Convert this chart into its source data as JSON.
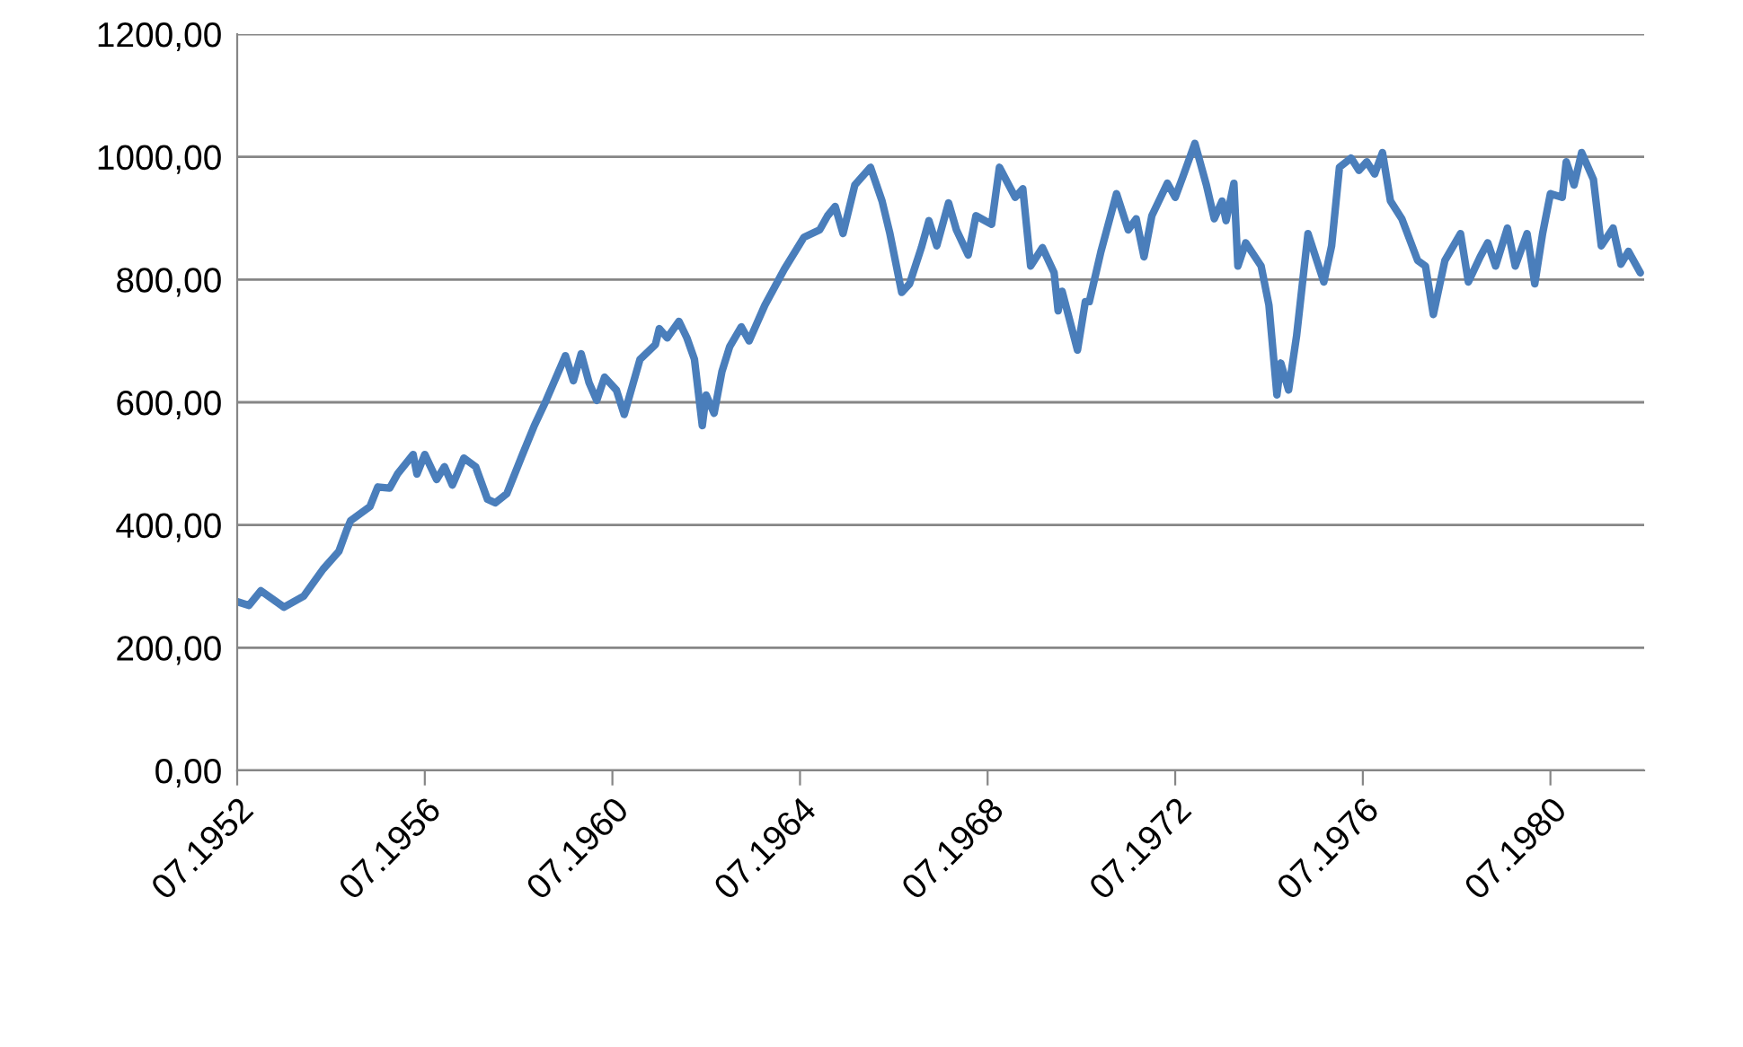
{
  "chart_data": {
    "type": "line",
    "color": "#4a7ebb",
    "x": [
      "1952-07",
      "1952-10",
      "1953-01",
      "1953-07",
      "1953-12",
      "1954-05",
      "1954-09",
      "1954-11",
      "1954-12",
      "1955-05",
      "1955-07",
      "1955-10",
      "1955-12",
      "1956-04",
      "1956-05",
      "1956-07",
      "1956-10",
      "1956-12",
      "1957-02",
      "1957-05",
      "1957-08",
      "1957-11",
      "1958-01",
      "1958-04",
      "1958-08",
      "1958-11",
      "1959-02",
      "1959-07",
      "1959-09",
      "1959-11",
      "1960-01",
      "1960-03",
      "1960-05",
      "1960-08",
      "1960-10",
      "1961-02",
      "1961-06",
      "1961-07",
      "1961-09",
      "1961-12",
      "1962-02",
      "1962-04",
      "1962-06",
      "1962-07",
      "1962-09",
      "1962-11",
      "1963-01",
      "1963-04",
      "1963-06",
      "1963-10",
      "1964-03",
      "1964-08",
      "1964-12",
      "1965-02",
      "1965-04",
      "1965-06",
      "1965-09",
      "1966-01",
      "1966-04",
      "1966-06",
      "1966-09",
      "1966-11",
      "1967-02",
      "1967-04",
      "1967-06",
      "1967-09",
      "1967-11",
      "1968-02",
      "1968-04",
      "1968-08",
      "1968-10",
      "1969-02",
      "1969-04",
      "1969-06",
      "1969-09",
      "1969-12",
      "1970-01",
      "1970-02",
      "1970-06",
      "1970-08",
      "1970-09",
      "1970-12",
      "1971-04",
      "1971-07",
      "1971-09",
      "1971-11",
      "1972-01",
      "1972-05",
      "1972-07",
      "1972-09",
      "1972-12",
      "1973-03",
      "1973-05",
      "1973-07",
      "1973-08",
      "1973-10",
      "1973-11",
      "1974-01",
      "1974-05",
      "1974-07",
      "1974-09",
      "1974-10",
      "1974-12",
      "1975-02",
      "1975-05",
      "1975-09",
      "1975-11",
      "1976-01",
      "1976-04",
      "1976-06",
      "1976-08",
      "1976-10",
      "1976-12",
      "1977-02",
      "1977-05",
      "1977-09",
      "1977-11",
      "1978-01",
      "1978-04",
      "1978-08",
      "1978-10",
      "1979-01",
      "1979-03",
      "1979-05",
      "1979-08",
      "1979-10",
      "1980-01",
      "1980-03",
      "1980-05",
      "1980-07",
      "1980-10",
      "1980-11",
      "1981-01",
      "1981-03",
      "1981-06",
      "1981-08",
      "1981-11",
      "1982-01",
      "1982-03",
      "1982-06"
    ],
    "values": [
      275,
      269,
      293,
      266,
      284,
      328,
      357,
      392,
      407,
      430,
      462,
      460,
      483,
      515,
      483,
      515,
      474,
      495,
      465,
      509,
      495,
      442,
      436,
      451,
      515,
      562,
      603,
      676,
      635,
      679,
      632,
      603,
      641,
      620,
      580,
      670,
      694,
      720,
      705,
      732,
      705,
      670,
      562,
      612,
      582,
      650,
      691,
      723,
      700,
      758,
      817,
      869,
      881,
      904,
      919,
      875,
      954,
      983,
      928,
      875,
      779,
      793,
      852,
      896,
      855,
      925,
      881,
      840,
      904,
      890,
      983,
      934,
      948,
      822,
      852,
      811,
      749,
      781,
      685,
      764,
      764,
      846,
      940,
      881,
      899,
      837,
      904,
      957,
      934,
      969,
      1022,
      954,
      899,
      928,
      896,
      957,
      822,
      860,
      822,
      758,
      612,
      664,
      620,
      708,
      875,
      796,
      855,
      983,
      998,
      978,
      992,
      972,
      1007,
      928,
      899,
      831,
      822,
      743,
      831,
      875,
      796,
      837,
      860,
      822,
      884,
      822,
      875,
      793,
      875,
      940,
      934,
      992,
      954,
      1007,
      963,
      855,
      884,
      825,
      846,
      811
    ],
    "xlim": [
      "1952-07",
      "1982-07"
    ],
    "xticks": [
      {
        "value": "1952-07",
        "label": "07.1952"
      },
      {
        "value": "1956-07",
        "label": "07.1956"
      },
      {
        "value": "1960-07",
        "label": "07.1960"
      },
      {
        "value": "1964-07",
        "label": "07.1964"
      },
      {
        "value": "1968-07",
        "label": "07.1968"
      },
      {
        "value": "1972-07",
        "label": "07.1972"
      },
      {
        "value": "1976-07",
        "label": "07.1976"
      },
      {
        "value": "1980-07",
        "label": "07.1980"
      }
    ],
    "ylim": [
      0,
      1200
    ],
    "yticks": [
      {
        "value": 0,
        "label": "0,00"
      },
      {
        "value": 200,
        "label": "200,00"
      },
      {
        "value": 400,
        "label": "400,00"
      },
      {
        "value": 600,
        "label": "600,00"
      },
      {
        "value": 800,
        "label": "800,00"
      },
      {
        "value": 1000,
        "label": "1000,00"
      },
      {
        "value": 1200,
        "label": "1200,00"
      }
    ],
    "grid": "y",
    "marker": "none",
    "line_style": "solid"
  }
}
